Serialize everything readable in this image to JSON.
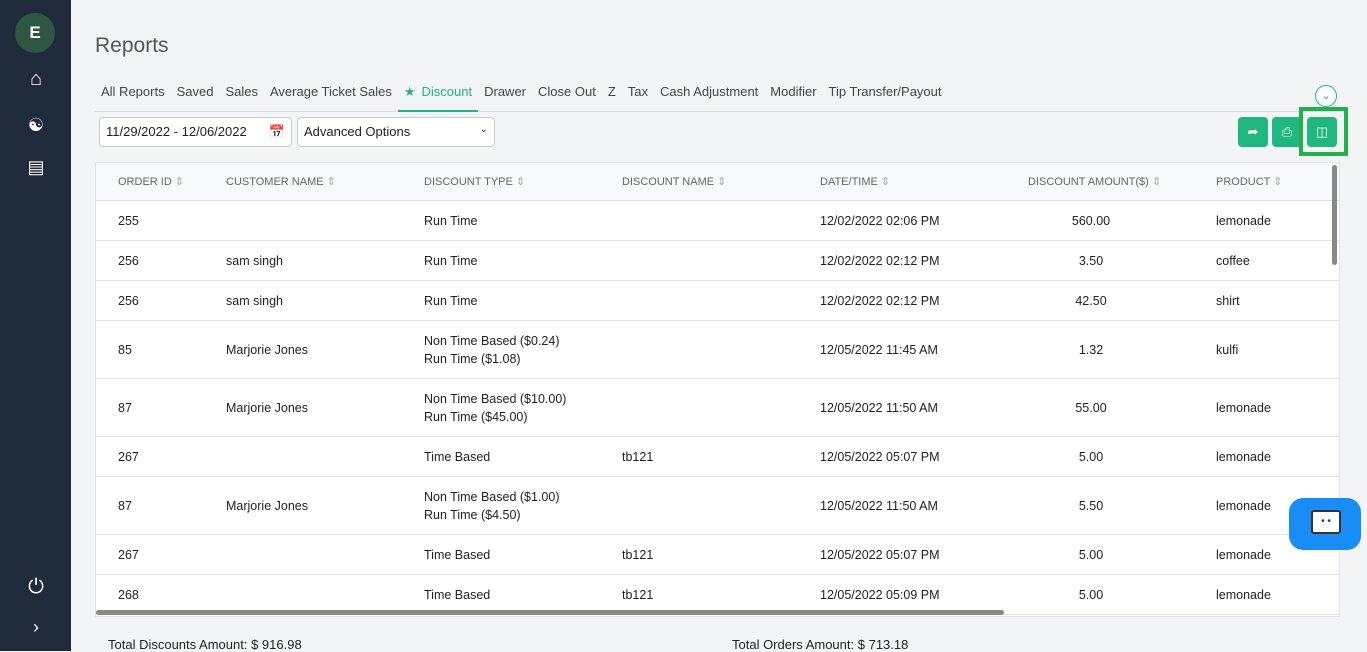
{
  "sidebar": {
    "avatar": "E",
    "icons": [
      "home-icon",
      "users-icon",
      "report-search-icon",
      "power-icon",
      "chevron-right-icon"
    ]
  },
  "page_title": "Reports",
  "tabs": [
    {
      "label": "All Reports"
    },
    {
      "label": "Saved"
    },
    {
      "label": "Sales"
    },
    {
      "label": "Average Ticket Sales"
    },
    {
      "label": "Discount",
      "active": true
    },
    {
      "label": "Drawer"
    },
    {
      "label": "Close Out"
    },
    {
      "label": "Z"
    },
    {
      "label": "Tax"
    },
    {
      "label": "Cash Adjustment"
    },
    {
      "label": "Modifier"
    },
    {
      "label": "Tip Transfer/Payout"
    }
  ],
  "filters": {
    "date_range": "11/29/2022 - 12/06/2022",
    "advanced": "Advanced Options"
  },
  "accent": "#1fb67f",
  "table": {
    "headers": [
      "ORDER ID",
      "CUSTOMER NAME",
      "DISCOUNT TYPE",
      "DISCOUNT NAME",
      "DATE/TIME",
      "DISCOUNT AMOUNT($)",
      "PRODUCT"
    ],
    "rows": [
      {
        "order_id": "255",
        "customer": "",
        "type": [
          "Run Time"
        ],
        "name": "",
        "datetime": "12/02/2022 02:06 PM",
        "amount": "560.00",
        "product": "lemonade"
      },
      {
        "order_id": "256",
        "customer": "sam singh",
        "type": [
          "Run Time"
        ],
        "name": "",
        "datetime": "12/02/2022 02:12 PM",
        "amount": "3.50",
        "product": "coffee"
      },
      {
        "order_id": "256",
        "customer": "sam singh",
        "type": [
          "Run Time"
        ],
        "name": "",
        "datetime": "12/02/2022 02:12 PM",
        "amount": "42.50",
        "product": "shirt"
      },
      {
        "order_id": "85",
        "customer": "Marjorie Jones",
        "type": [
          "Non Time Based ($0.24)",
          "Run Time ($1.08)"
        ],
        "name": "",
        "datetime": "12/05/2022 11:45 AM",
        "amount": "1.32",
        "product": "kulfi"
      },
      {
        "order_id": "87",
        "customer": "Marjorie Jones",
        "type": [
          "Non Time Based ($10.00)",
          "Run Time ($45.00)"
        ],
        "name": "",
        "datetime": "12/05/2022 11:50 AM",
        "amount": "55.00",
        "product": "lemonade"
      },
      {
        "order_id": "267",
        "customer": "",
        "type": [
          "Time Based"
        ],
        "name": "tb121",
        "datetime": "12/05/2022 05:07 PM",
        "amount": "5.00",
        "product": "lemonade"
      },
      {
        "order_id": "87",
        "customer": "Marjorie Jones",
        "type": [
          "Non Time Based ($1.00)",
          "Run Time ($4.50)"
        ],
        "name": "",
        "datetime": "12/05/2022 11:50 AM",
        "amount": "5.50",
        "product": "lemonade"
      },
      {
        "order_id": "267",
        "customer": "",
        "type": [
          "Time Based"
        ],
        "name": "tb121",
        "datetime": "12/05/2022 05:07 PM",
        "amount": "5.00",
        "product": "lemonade"
      },
      {
        "order_id": "268",
        "customer": "",
        "type": [
          "Time Based"
        ],
        "name": "tb121",
        "datetime": "12/05/2022 05:09 PM",
        "amount": "5.00",
        "product": "lemonade"
      }
    ]
  },
  "totals": {
    "discounts_label": "Total Discounts Amount:",
    "discounts_value": "$ 916.98",
    "orders_label": "Total Orders Amount:",
    "orders_value": "$ 713.18"
  }
}
